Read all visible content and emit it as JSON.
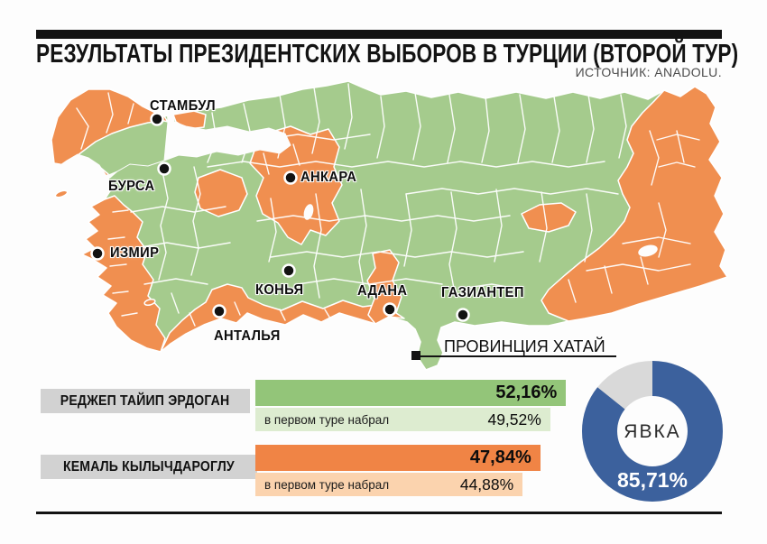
{
  "header": {
    "title": "РЕЗУЛЬТАТЫ ПРЕЗИДЕНТСКИХ ВЫБОРОВ В ТУРЦИИ (ВТОРОЙ ТУР)",
    "source": "ИСТОЧНИК: ANADOLU."
  },
  "map": {
    "colors": {
      "erdogan_green": "#a5cb8d",
      "kilicdaroglu_orange": "#f08f50",
      "border_white": "#ffffff"
    },
    "cities": [
      {
        "name": "СТАМБУЛ"
      },
      {
        "name": "БУРСА"
      },
      {
        "name": "АНКАРА"
      },
      {
        "name": "ИЗМИР"
      },
      {
        "name": "КОНЬЯ"
      },
      {
        "name": "АНТАЛЬЯ"
      },
      {
        "name": "АДАНА"
      },
      {
        "name": "ГАЗИАНТЕП"
      }
    ],
    "hatay": {
      "label": "ПРОВИНЦИЯ ХАТАЙ"
    }
  },
  "results": {
    "candidates": [
      {
        "name": "РЕДЖЕП ТАЙИП ЭРДОГАН",
        "round2_value": 52.16,
        "round2_label": "52,16%",
        "round1_note": "в первом туре набрал",
        "round1_value": 49.52,
        "round1_label": "49,52%",
        "color": "#93c579",
        "color_light": "#ddecd0"
      },
      {
        "name": "КЕМАЛЬ КЫЛЫЧДАРОГЛУ",
        "round2_value": 47.84,
        "round2_label": "47,84%",
        "round1_note": "в первом туре набрал",
        "round1_value": 44.88,
        "round1_label": "44,88%",
        "color": "#f08445",
        "color_light": "#fbd3ae"
      }
    ]
  },
  "turnout": {
    "label": "ЯВКА",
    "value": 85.71,
    "value_label": "85,71%",
    "color": "#3c619d",
    "remainder_color": "#d9d9d9"
  },
  "chart_data": [
    {
      "type": "bar",
      "title": "РЕЗУЛЬТАТЫ ПРЕЗИДЕНТСКИХ ВЫБОРОВ В ТУРЦИИ (ВТОРОЙ ТУР)",
      "unit": "%",
      "categories": [
        "РЕДЖЕП ТАЙИП ЭРДОГАН",
        "КЕМАЛЬ КЫЛЫЧДАРОГЛУ"
      ],
      "series": [
        {
          "name": "второй тур",
          "values": [
            52.16,
            47.84
          ]
        },
        {
          "name": "в первом туре набрал",
          "values": [
            49.52,
            44.88
          ]
        }
      ],
      "colors": [
        "#93c579",
        "#f08445"
      ],
      "xlim": [
        0,
        60
      ],
      "legend_position": "none",
      "grid": false
    },
    {
      "type": "pie",
      "title": "ЯВКА",
      "slices": [
        {
          "label": "ЯВКА",
          "value": 85.71,
          "color": "#3c619d"
        },
        {
          "label": "",
          "value": 14.29,
          "color": "#d9d9d9"
        }
      ]
    }
  ]
}
